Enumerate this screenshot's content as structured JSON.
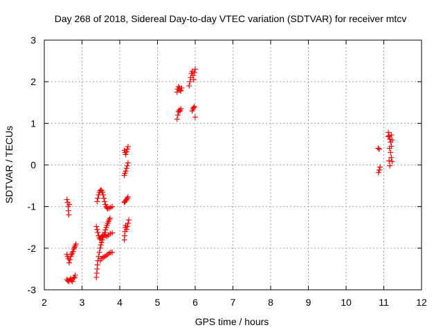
{
  "chart_data": {
    "type": "scatter",
    "title": "Day 268 of 2018, Sidereal Day-to-day VTEC variation (SDTVAR) for receiver mtcv",
    "xlabel": "GPS time / hours",
    "ylabel": "SDTVAR / TECUs",
    "xlim": [
      2,
      12
    ],
    "ylim": [
      -3,
      3
    ],
    "xticks": [
      "2",
      "3",
      "4",
      "5",
      "6",
      "7",
      "8",
      "9",
      "10",
      "11",
      "12"
    ],
    "yticks": [
      "-3",
      "-2",
      "-1",
      "0",
      "1",
      "2",
      "3"
    ],
    "grid": true,
    "marker": "+",
    "color": "#ff0000",
    "series": [
      {
        "name": "SDTVAR",
        "points": [
          [
            2.6,
            -0.83
          ],
          [
            2.62,
            -0.9
          ],
          [
            2.63,
            -1.0
          ],
          [
            2.64,
            -1.1
          ],
          [
            2.65,
            -1.2
          ],
          [
            2.66,
            -0.95
          ],
          [
            2.6,
            -2.75
          ],
          [
            2.62,
            -2.78
          ],
          [
            2.65,
            -2.8
          ],
          [
            2.68,
            -2.76
          ],
          [
            2.7,
            -2.73
          ],
          [
            2.72,
            -2.78
          ],
          [
            2.75,
            -2.8
          ],
          [
            2.78,
            -2.72
          ],
          [
            2.8,
            -2.7
          ],
          [
            2.82,
            -2.65
          ],
          [
            2.6,
            -2.15
          ],
          [
            2.62,
            -2.2
          ],
          [
            2.64,
            -2.25
          ],
          [
            2.66,
            -2.35
          ],
          [
            2.68,
            -2.28
          ],
          [
            2.7,
            -2.2
          ],
          [
            2.72,
            -2.15
          ],
          [
            2.74,
            -2.12
          ],
          [
            2.76,
            -2.08
          ],
          [
            2.78,
            -2.02
          ],
          [
            2.8,
            -1.98
          ],
          [
            2.82,
            -1.94
          ],
          [
            2.84,
            -1.9
          ],
          [
            3.38,
            -1.48
          ],
          [
            3.4,
            -1.55
          ],
          [
            3.42,
            -1.62
          ],
          [
            3.44,
            -1.7
          ],
          [
            3.46,
            -1.75
          ],
          [
            3.48,
            -1.78
          ],
          [
            3.5,
            -1.75
          ],
          [
            3.52,
            -1.72
          ],
          [
            3.55,
            -1.7
          ],
          [
            3.58,
            -1.68
          ],
          [
            3.62,
            -1.7
          ],
          [
            3.66,
            -1.72
          ],
          [
            3.7,
            -1.68
          ],
          [
            3.75,
            -1.65
          ],
          [
            3.8,
            -1.63
          ],
          [
            3.4,
            -0.88
          ],
          [
            3.42,
            -0.8
          ],
          [
            3.44,
            -0.72
          ],
          [
            3.46,
            -0.66
          ],
          [
            3.48,
            -0.62
          ],
          [
            3.5,
            -0.6
          ],
          [
            3.52,
            -0.62
          ],
          [
            3.54,
            -0.66
          ],
          [
            3.56,
            -0.72
          ],
          [
            3.58,
            -0.8
          ],
          [
            3.6,
            -0.88
          ],
          [
            3.62,
            -0.95
          ],
          [
            3.64,
            -1.0
          ],
          [
            3.66,
            -1.03
          ],
          [
            3.68,
            -1.05
          ],
          [
            3.72,
            -1.04
          ],
          [
            3.76,
            -1.02
          ],
          [
            3.8,
            -1.0
          ],
          [
            3.38,
            -2.7
          ],
          [
            3.39,
            -2.6
          ],
          [
            3.4,
            -2.5
          ],
          [
            3.41,
            -2.4
          ],
          [
            3.42,
            -2.3
          ],
          [
            3.44,
            -2.2
          ],
          [
            3.46,
            -2.1
          ],
          [
            3.48,
            -2.0
          ],
          [
            3.5,
            -1.92
          ],
          [
            3.52,
            -1.86
          ],
          [
            3.54,
            -1.8
          ],
          [
            3.56,
            -1.74
          ],
          [
            3.58,
            -1.68
          ],
          [
            3.6,
            -1.62
          ],
          [
            3.62,
            -1.56
          ],
          [
            3.64,
            -1.5
          ],
          [
            3.66,
            -1.45
          ],
          [
            3.68,
            -1.4
          ],
          [
            3.7,
            -1.36
          ],
          [
            3.72,
            -1.32
          ],
          [
            3.74,
            -1.28
          ],
          [
            3.48,
            -2.3
          ],
          [
            3.52,
            -2.25
          ],
          [
            3.56,
            -2.22
          ],
          [
            3.6,
            -2.2
          ],
          [
            3.64,
            -2.18
          ],
          [
            3.68,
            -2.15
          ],
          [
            3.72,
            -2.12
          ],
          [
            3.76,
            -2.1
          ],
          [
            3.8,
            -2.1
          ],
          [
            4.12,
            -1.8
          ],
          [
            4.13,
            -1.7
          ],
          [
            4.14,
            -1.6
          ],
          [
            4.15,
            -1.5
          ],
          [
            4.16,
            -1.45
          ],
          [
            4.18,
            -1.55
          ],
          [
            4.2,
            -1.48
          ],
          [
            4.22,
            -1.4
          ],
          [
            4.24,
            -1.32
          ],
          [
            4.12,
            -0.9
          ],
          [
            4.14,
            -0.88
          ],
          [
            4.16,
            -0.85
          ],
          [
            4.18,
            -0.83
          ],
          [
            4.2,
            -0.8
          ],
          [
            4.22,
            -0.77
          ],
          [
            4.12,
            -0.25
          ],
          [
            4.14,
            -0.2
          ],
          [
            4.16,
            -0.15
          ],
          [
            4.18,
            -0.08
          ],
          [
            4.2,
            -0.02
          ],
          [
            4.22,
            0.05
          ],
          [
            4.12,
            0.35
          ],
          [
            4.14,
            0.3
          ],
          [
            4.16,
            0.25
          ],
          [
            4.18,
            0.32
          ],
          [
            4.2,
            0.38
          ],
          [
            4.22,
            0.44
          ],
          [
            5.52,
            1.1
          ],
          [
            5.54,
            1.2
          ],
          [
            5.56,
            1.28
          ],
          [
            5.58,
            1.32
          ],
          [
            5.6,
            1.3
          ],
          [
            5.62,
            1.35
          ],
          [
            5.52,
            1.75
          ],
          [
            5.54,
            1.82
          ],
          [
            5.56,
            1.88
          ],
          [
            5.58,
            1.85
          ],
          [
            5.6,
            1.8
          ],
          [
            5.62,
            1.78
          ],
          [
            5.64,
            1.85
          ],
          [
            5.84,
            1.9
          ],
          [
            5.86,
            2.0
          ],
          [
            5.88,
            2.1
          ],
          [
            5.9,
            2.2
          ],
          [
            5.92,
            2.25
          ],
          [
            5.94,
            2.15
          ],
          [
            5.96,
            2.05
          ],
          [
            5.98,
            2.22
          ],
          [
            6.0,
            2.3
          ],
          [
            5.92,
            1.3
          ],
          [
            5.94,
            1.35
          ],
          [
            5.96,
            1.38
          ],
          [
            5.98,
            1.4
          ],
          [
            6.0,
            1.15
          ],
          [
            10.85,
            0.4
          ],
          [
            10.88,
            0.38
          ],
          [
            10.9,
            -0.05
          ],
          [
            10.88,
            -0.12
          ],
          [
            10.86,
            -0.18
          ],
          [
            11.12,
            0.78
          ],
          [
            11.14,
            0.7
          ],
          [
            11.16,
            0.62
          ],
          [
            11.18,
            0.55
          ],
          [
            11.2,
            0.45
          ],
          [
            11.15,
            0.4
          ],
          [
            11.18,
            0.3
          ],
          [
            11.2,
            0.18
          ],
          [
            11.22,
            0.08
          ],
          [
            11.16,
            -0.02
          ],
          [
            11.14,
            0.1
          ],
          [
            11.12,
            0.68
          ],
          [
            11.22,
            0.6
          ],
          [
            11.2,
            0.72
          ]
        ]
      }
    ]
  }
}
